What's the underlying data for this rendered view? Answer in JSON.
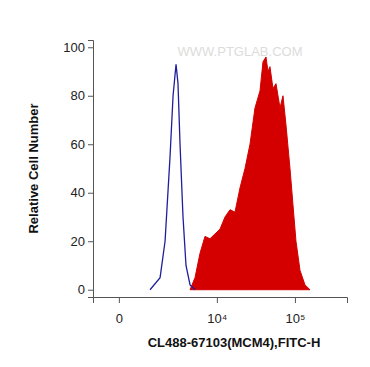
{
  "chart_data": {
    "type": "area",
    "x_label": "CL488-67103(MCM4),FITC-H",
    "y_label": "Relative Cell Number",
    "annotations": [
      "WWW.PTGLAB.COM"
    ],
    "log": "x",
    "xlim": [
      -700,
      450000
    ],
    "xticks": [
      0,
      {
        "value": 10000,
        "label": "10⁴"
      },
      {
        "value": 100000,
        "label": "10⁵"
      }
    ],
    "ylim": [
      -3,
      103
    ],
    "yticks": [
      0,
      20,
      40,
      60,
      80,
      100
    ],
    "series": [
      {
        "type": "area",
        "color": "#d40000",
        "x": [
          4280,
          5040,
          5910,
          6920,
          8090,
          9440,
          11010,
          12810,
          14890,
          17290,
          20060,
          23270,
          26970,
          31240,
          36170,
          39490,
          43120,
          45700,
          48420,
          52870,
          57700,
          64820,
          70720,
          77140,
          86660,
          94500,
          103100,
          115800,
          133800,
          154600
        ],
        "values": [
          0,
          5,
          15,
          22,
          21,
          23,
          25,
          30,
          33,
          32,
          42,
          50,
          60,
          75,
          82,
          94,
          96,
          90,
          92,
          83,
          85,
          75,
          80,
          68,
          50,
          35,
          20,
          8,
          2,
          0
        ]
      },
      {
        "type": "line",
        "color": "#1f1f9e",
        "x": [
          920,
          1440,
          1760,
          2130,
          2380,
          2650,
          2840,
          3050,
          3380,
          3740,
          4280,
          5040
        ],
        "values": [
          0,
          5,
          20,
          55,
          80,
          93,
          85,
          60,
          30,
          10,
          2,
          0
        ]
      }
    ]
  }
}
